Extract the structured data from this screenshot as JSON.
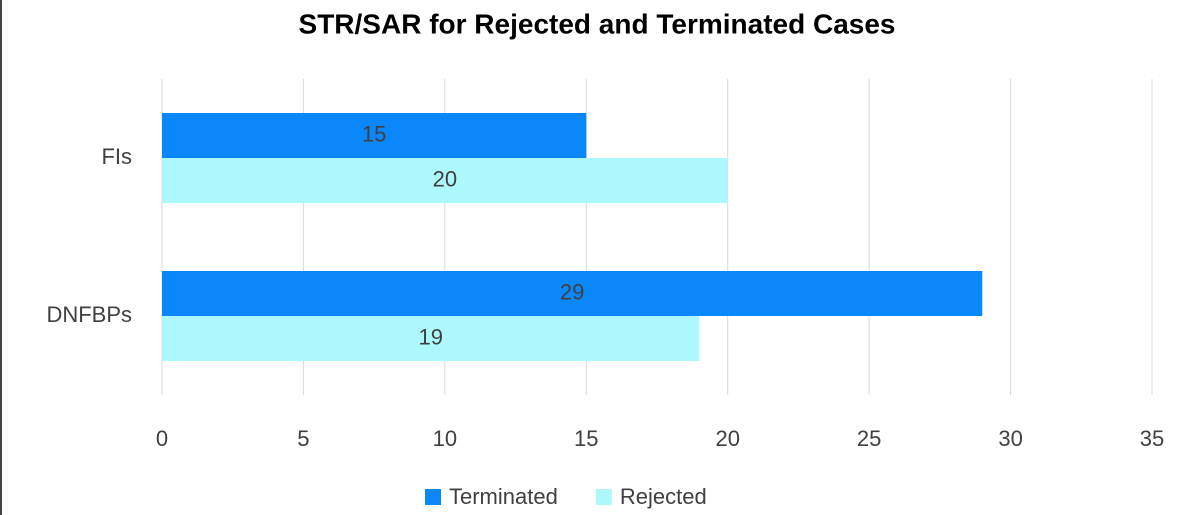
{
  "chart_data": {
    "type": "hbar",
    "title": "STR/SAR for Rejected and Terminated Cases",
    "categories": [
      "FIs",
      "DNFBPs"
    ],
    "series": [
      {
        "name": "Terminated",
        "color": "#0a88fb",
        "values": [
          15,
          29
        ]
      },
      {
        "name": "Rejected",
        "color": "#adf8fc",
        "values": [
          20,
          19
        ]
      }
    ],
    "xlim": [
      0,
      35
    ],
    "xticks": [
      0,
      5,
      10,
      15,
      20,
      25,
      30,
      35
    ],
    "grid": true,
    "legend": "bottom"
  }
}
